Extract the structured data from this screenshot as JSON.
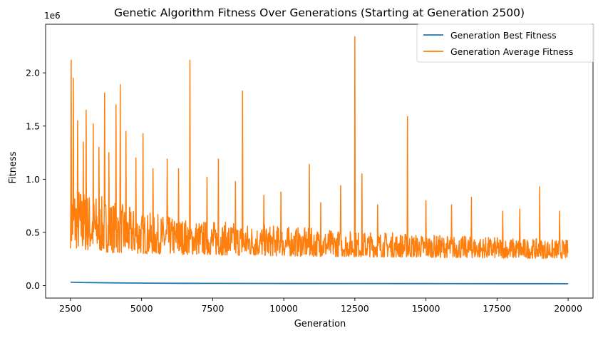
{
  "chart_data": {
    "type": "line",
    "title": "Genetic Algorithm Fitness Over Generations (Starting at Generation 2500)",
    "xlabel": "Generation",
    "ylabel": "Fitness",
    "y_offset_text": "1e6",
    "xlim": [
      2500,
      20000
    ],
    "ylim": [
      0,
      2340000
    ],
    "x_ticks": [
      2500,
      5000,
      7500,
      10000,
      12500,
      15000,
      17500,
      20000
    ],
    "x_tick_labels": [
      "2500",
      "5000",
      "7500",
      "10000",
      "12500",
      "15000",
      "17500",
      "20000"
    ],
    "y_ticks": [
      0,
      500000,
      1000000,
      1500000,
      2000000
    ],
    "y_tick_labels": [
      "0.0",
      "0.5",
      "1.0",
      "1.5",
      "2.0"
    ],
    "grid": false,
    "legend_position": "top-right",
    "series": [
      {
        "name": "Generation Best Fitness",
        "color": "#1f77b4",
        "x": [
          2500,
          3000,
          4000,
          5000,
          6000,
          7500,
          10000,
          12500,
          15000,
          17500,
          20000
        ],
        "values": [
          32000,
          29000,
          26000,
          24000,
          22000,
          21000,
          20000,
          19500,
          19000,
          18500,
          18000
        ]
      },
      {
        "name": "Generation Average Fitness",
        "color": "#ff7f0e",
        "envelope": {
          "x": [
            2500,
            3000,
            3500,
            4000,
            5000,
            6000,
            7000,
            8000,
            9000,
            10000,
            11000,
            12000,
            13000,
            14000,
            15000,
            16000,
            17000,
            18000,
            19000,
            20000
          ],
          "high": [
            1000000,
            900000,
            850000,
            800000,
            700000,
            650000,
            620000,
            600000,
            580000,
            560000,
            540000,
            520000,
            510000,
            500000,
            480000,
            470000,
            460000,
            450000,
            440000,
            430000
          ],
          "low": [
            350000,
            330000,
            320000,
            310000,
            300000,
            295000,
            290000,
            285000,
            280000,
            278000,
            275000,
            272000,
            270000,
            268000,
            265000,
            262000,
            260000,
            258000,
            255000,
            255000
          ]
        },
        "spikes": [
          {
            "x": 2530,
            "y": 2120000
          },
          {
            "x": 2600,
            "y": 1950000
          },
          {
            "x": 2750,
            "y": 1550000
          },
          {
            "x": 2950,
            "y": 1350000
          },
          {
            "x": 3050,
            "y": 1650000
          },
          {
            "x": 3300,
            "y": 1520000
          },
          {
            "x": 3500,
            "y": 1300000
          },
          {
            "x": 3700,
            "y": 1810000
          },
          {
            "x": 3850,
            "y": 1250000
          },
          {
            "x": 4100,
            "y": 1700000
          },
          {
            "x": 4250,
            "y": 1890000
          },
          {
            "x": 4450,
            "y": 1450000
          },
          {
            "x": 4800,
            "y": 1200000
          },
          {
            "x": 5050,
            "y": 1430000
          },
          {
            "x": 5400,
            "y": 1100000
          },
          {
            "x": 5900,
            "y": 1190000
          },
          {
            "x": 6300,
            "y": 1100000
          },
          {
            "x": 6700,
            "y": 2120000
          },
          {
            "x": 7300,
            "y": 1020000
          },
          {
            "x": 7700,
            "y": 1190000
          },
          {
            "x": 8300,
            "y": 980000
          },
          {
            "x": 8550,
            "y": 1830000
          },
          {
            "x": 9300,
            "y": 850000
          },
          {
            "x": 9900,
            "y": 880000
          },
          {
            "x": 10900,
            "y": 1140000
          },
          {
            "x": 11300,
            "y": 780000
          },
          {
            "x": 12000,
            "y": 940000
          },
          {
            "x": 12500,
            "y": 2340000
          },
          {
            "x": 12750,
            "y": 1050000
          },
          {
            "x": 13300,
            "y": 760000
          },
          {
            "x": 14350,
            "y": 1590000
          },
          {
            "x": 15000,
            "y": 800000
          },
          {
            "x": 15900,
            "y": 760000
          },
          {
            "x": 16600,
            "y": 830000
          },
          {
            "x": 17700,
            "y": 700000
          },
          {
            "x": 18300,
            "y": 720000
          },
          {
            "x": 19000,
            "y": 930000
          },
          {
            "x": 19700,
            "y": 700000
          }
        ]
      }
    ]
  }
}
